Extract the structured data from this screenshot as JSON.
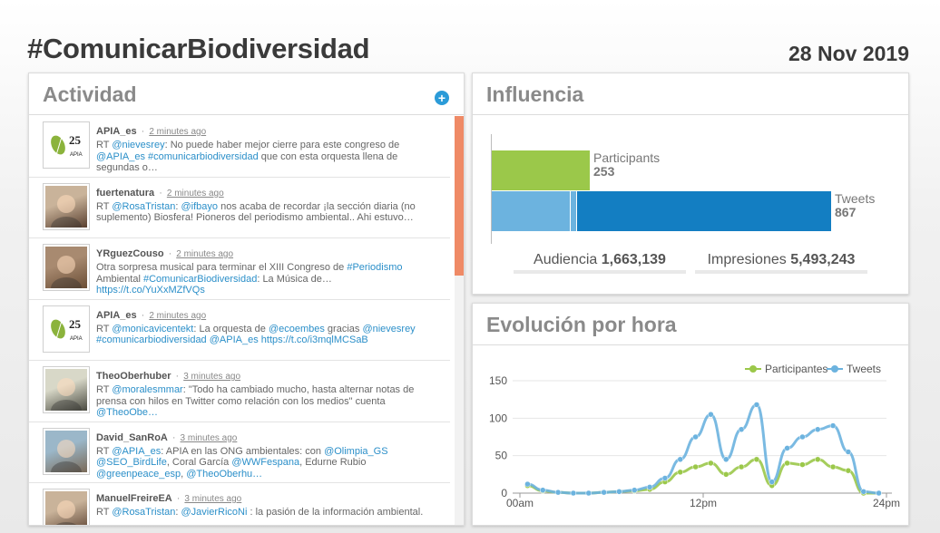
{
  "header": {
    "hashtag": "#ComunicarBiodiversidad",
    "date": "28 Nov 2019"
  },
  "actividad": {
    "title": "Actividad",
    "add_icon": "plus-circle-icon",
    "tweets": [
      {
        "user": "APIA_es",
        "time": "2 minutes ago",
        "avatar": "apia-logo",
        "parts": [
          [
            "RT ",
            0
          ],
          [
            "@nievesrey",
            1
          ],
          [
            ": No puede haber mejor cierre para este congreso de ",
            0
          ],
          [
            "@APIA_es",
            1
          ],
          [
            " ",
            0
          ],
          [
            "#comunicarbiodiversidad",
            1
          ],
          [
            " que con esta orquesta llena de segundas o…",
            0
          ]
        ]
      },
      {
        "user": "fuertenatura",
        "time": "2 minutes ago",
        "avatar": "photo",
        "parts": [
          [
            "RT ",
            0
          ],
          [
            "@RosaTristan",
            1
          ],
          [
            ": ",
            0
          ],
          [
            "@ifbayo",
            1
          ],
          [
            " nos acaba de recordar ¡la sección diaria (no suplemento) Biosfera! Pioneros del periodismo ambiental.. Ahi estuvo…",
            0
          ]
        ]
      },
      {
        "user": "YRguezCouso",
        "time": "2 minutes ago",
        "avatar": "photo",
        "parts": [
          [
            "Otra sorpresa musical para terminar el XIII Congreso de ",
            0
          ],
          [
            "#Periodismo",
            1
          ],
          [
            " Ambiental ",
            0
          ],
          [
            "#ComunicarBiodiversidad",
            1
          ],
          [
            ": La Música de… ",
            0
          ],
          [
            "https://t.co/YuXxMZfVQs",
            1
          ]
        ]
      },
      {
        "user": "APIA_es",
        "time": "2 minutes ago",
        "avatar": "apia-logo",
        "parts": [
          [
            "RT ",
            0
          ],
          [
            "@monicavicentekt",
            1
          ],
          [
            ": La orquesta de ",
            0
          ],
          [
            "@ecoembes",
            1
          ],
          [
            " gracias ",
            0
          ],
          [
            "@nievesrey",
            1
          ],
          [
            " ",
            0
          ],
          [
            "#comunicarbiodiversidad",
            1
          ],
          [
            " ",
            0
          ],
          [
            "@APIA_es",
            1
          ],
          [
            " ",
            0
          ],
          [
            "https://t.co/i3mqlMCSaB",
            1
          ]
        ]
      },
      {
        "user": "TheoOberhuber",
        "time": "3 minutes ago",
        "avatar": "photo",
        "parts": [
          [
            "RT ",
            0
          ],
          [
            "@moralesmmar",
            1
          ],
          [
            ": \"Todo ha cambiado mucho, hasta alternar notas de prensa con hilos en Twitter como relación con los medios\" cuenta ",
            0
          ],
          [
            "@TheoObe…",
            1
          ]
        ]
      },
      {
        "user": "David_SanRoA",
        "time": "3 minutes ago",
        "avatar": "photo",
        "parts": [
          [
            "RT ",
            0
          ],
          [
            "@APIA_es",
            1
          ],
          [
            ": APIA en las ONG ambientales: con ",
            0
          ],
          [
            "@Olimpia_GS",
            1
          ],
          [
            " ",
            0
          ],
          [
            "@SEO_BirdLife",
            1
          ],
          [
            ", Coral García ",
            0
          ],
          [
            "@WWFespana",
            1
          ],
          [
            ", Edurne Rubio ",
            0
          ],
          [
            "@greenpeace_esp",
            1
          ],
          [
            ", ",
            0
          ],
          [
            "@TheoOberhu…",
            1
          ]
        ]
      },
      {
        "user": "ManuelFreireEA",
        "time": "3 minutes ago",
        "avatar": "photo",
        "parts": [
          [
            "RT ",
            0
          ],
          [
            "@RosaTristan",
            1
          ],
          [
            ": ",
            0
          ],
          [
            "@JavierRicoNi",
            1
          ],
          [
            " : la pasión de la información ambiental.",
            0
          ]
        ]
      }
    ]
  },
  "influencia": {
    "title": "Influencia",
    "participants_label": "Participants",
    "participants_value": "253",
    "tweets_label": "Tweets",
    "tweets_value": "867",
    "audiencia_label": "Audiencia",
    "audiencia_value": "1,663,139",
    "impresiones_label": "Impresiones",
    "impresiones_value": "5,493,243"
  },
  "evolucion": {
    "title": "Evolución por hora"
  },
  "colors": {
    "green": "#9bc84a",
    "blue": "#6cb3df",
    "dark_blue": "#137ec2",
    "orange": "#ef8a66"
  },
  "chart_data": {
    "type": "line",
    "x_tick_labels": [
      "00am",
      "12pm",
      "24pm"
    ],
    "ylim": [
      0,
      150
    ],
    "y_ticks": [
      0,
      50,
      100,
      150
    ],
    "legend": "top-right",
    "x": [
      0,
      1,
      2,
      3,
      4,
      5,
      6,
      7,
      8,
      9,
      10,
      11,
      12,
      13,
      14,
      15,
      16,
      17,
      18,
      19,
      20,
      21,
      22,
      23
    ],
    "series": [
      {
        "name": "Participantes",
        "color": "#9bc84a",
        "values": [
          10,
          3,
          1,
          0,
          0,
          1,
          2,
          3,
          5,
          15,
          28,
          35,
          40,
          25,
          35,
          45,
          10,
          40,
          38,
          45,
          35,
          30,
          0,
          0
        ]
      },
      {
        "name": "Tweets",
        "color": "#6cb3df",
        "values": [
          12,
          4,
          1,
          0,
          0,
          1,
          2,
          4,
          8,
          20,
          45,
          75,
          105,
          45,
          85,
          118,
          15,
          60,
          75,
          85,
          90,
          55,
          2,
          0
        ]
      }
    ]
  }
}
